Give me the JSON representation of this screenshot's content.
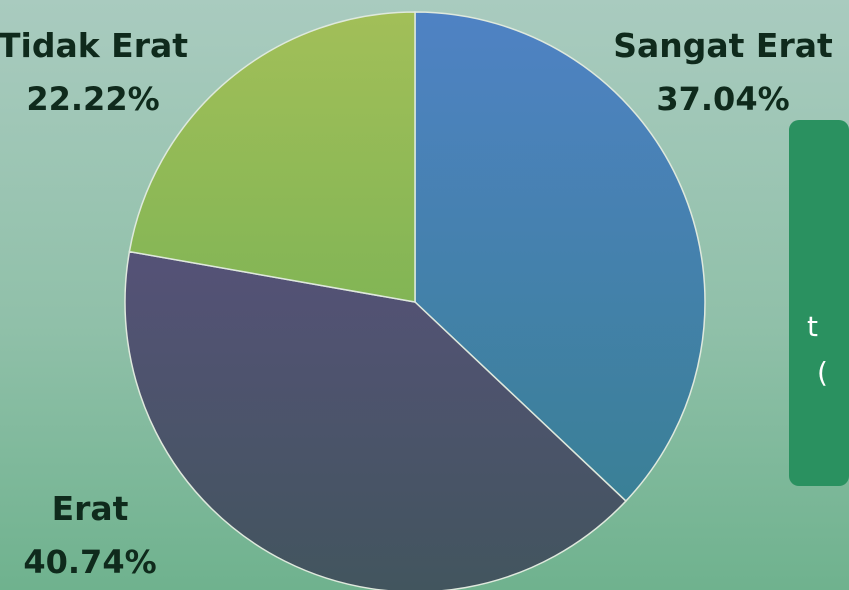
{
  "chart_data": {
    "type": "pie",
    "categories": [
      "Sangat Erat",
      "Erat",
      "Tidak Erat"
    ],
    "values": [
      37.04,
      40.74,
      22.22
    ],
    "value_labels": [
      "37.04%",
      "40.74%",
      "22.22%"
    ],
    "start_angle_deg": 0,
    "direction": "clockwise",
    "legend": "none",
    "colors": {
      "Sangat Erat": [
        "#4f82c4",
        "#3a8096"
      ],
      "Erat": [
        "#555277",
        "#42555e"
      ],
      "Tidak Erat": [
        "#a2bf58",
        "#82b555"
      ]
    }
  },
  "panel": {
    "line1": "t",
    "line2": "("
  }
}
